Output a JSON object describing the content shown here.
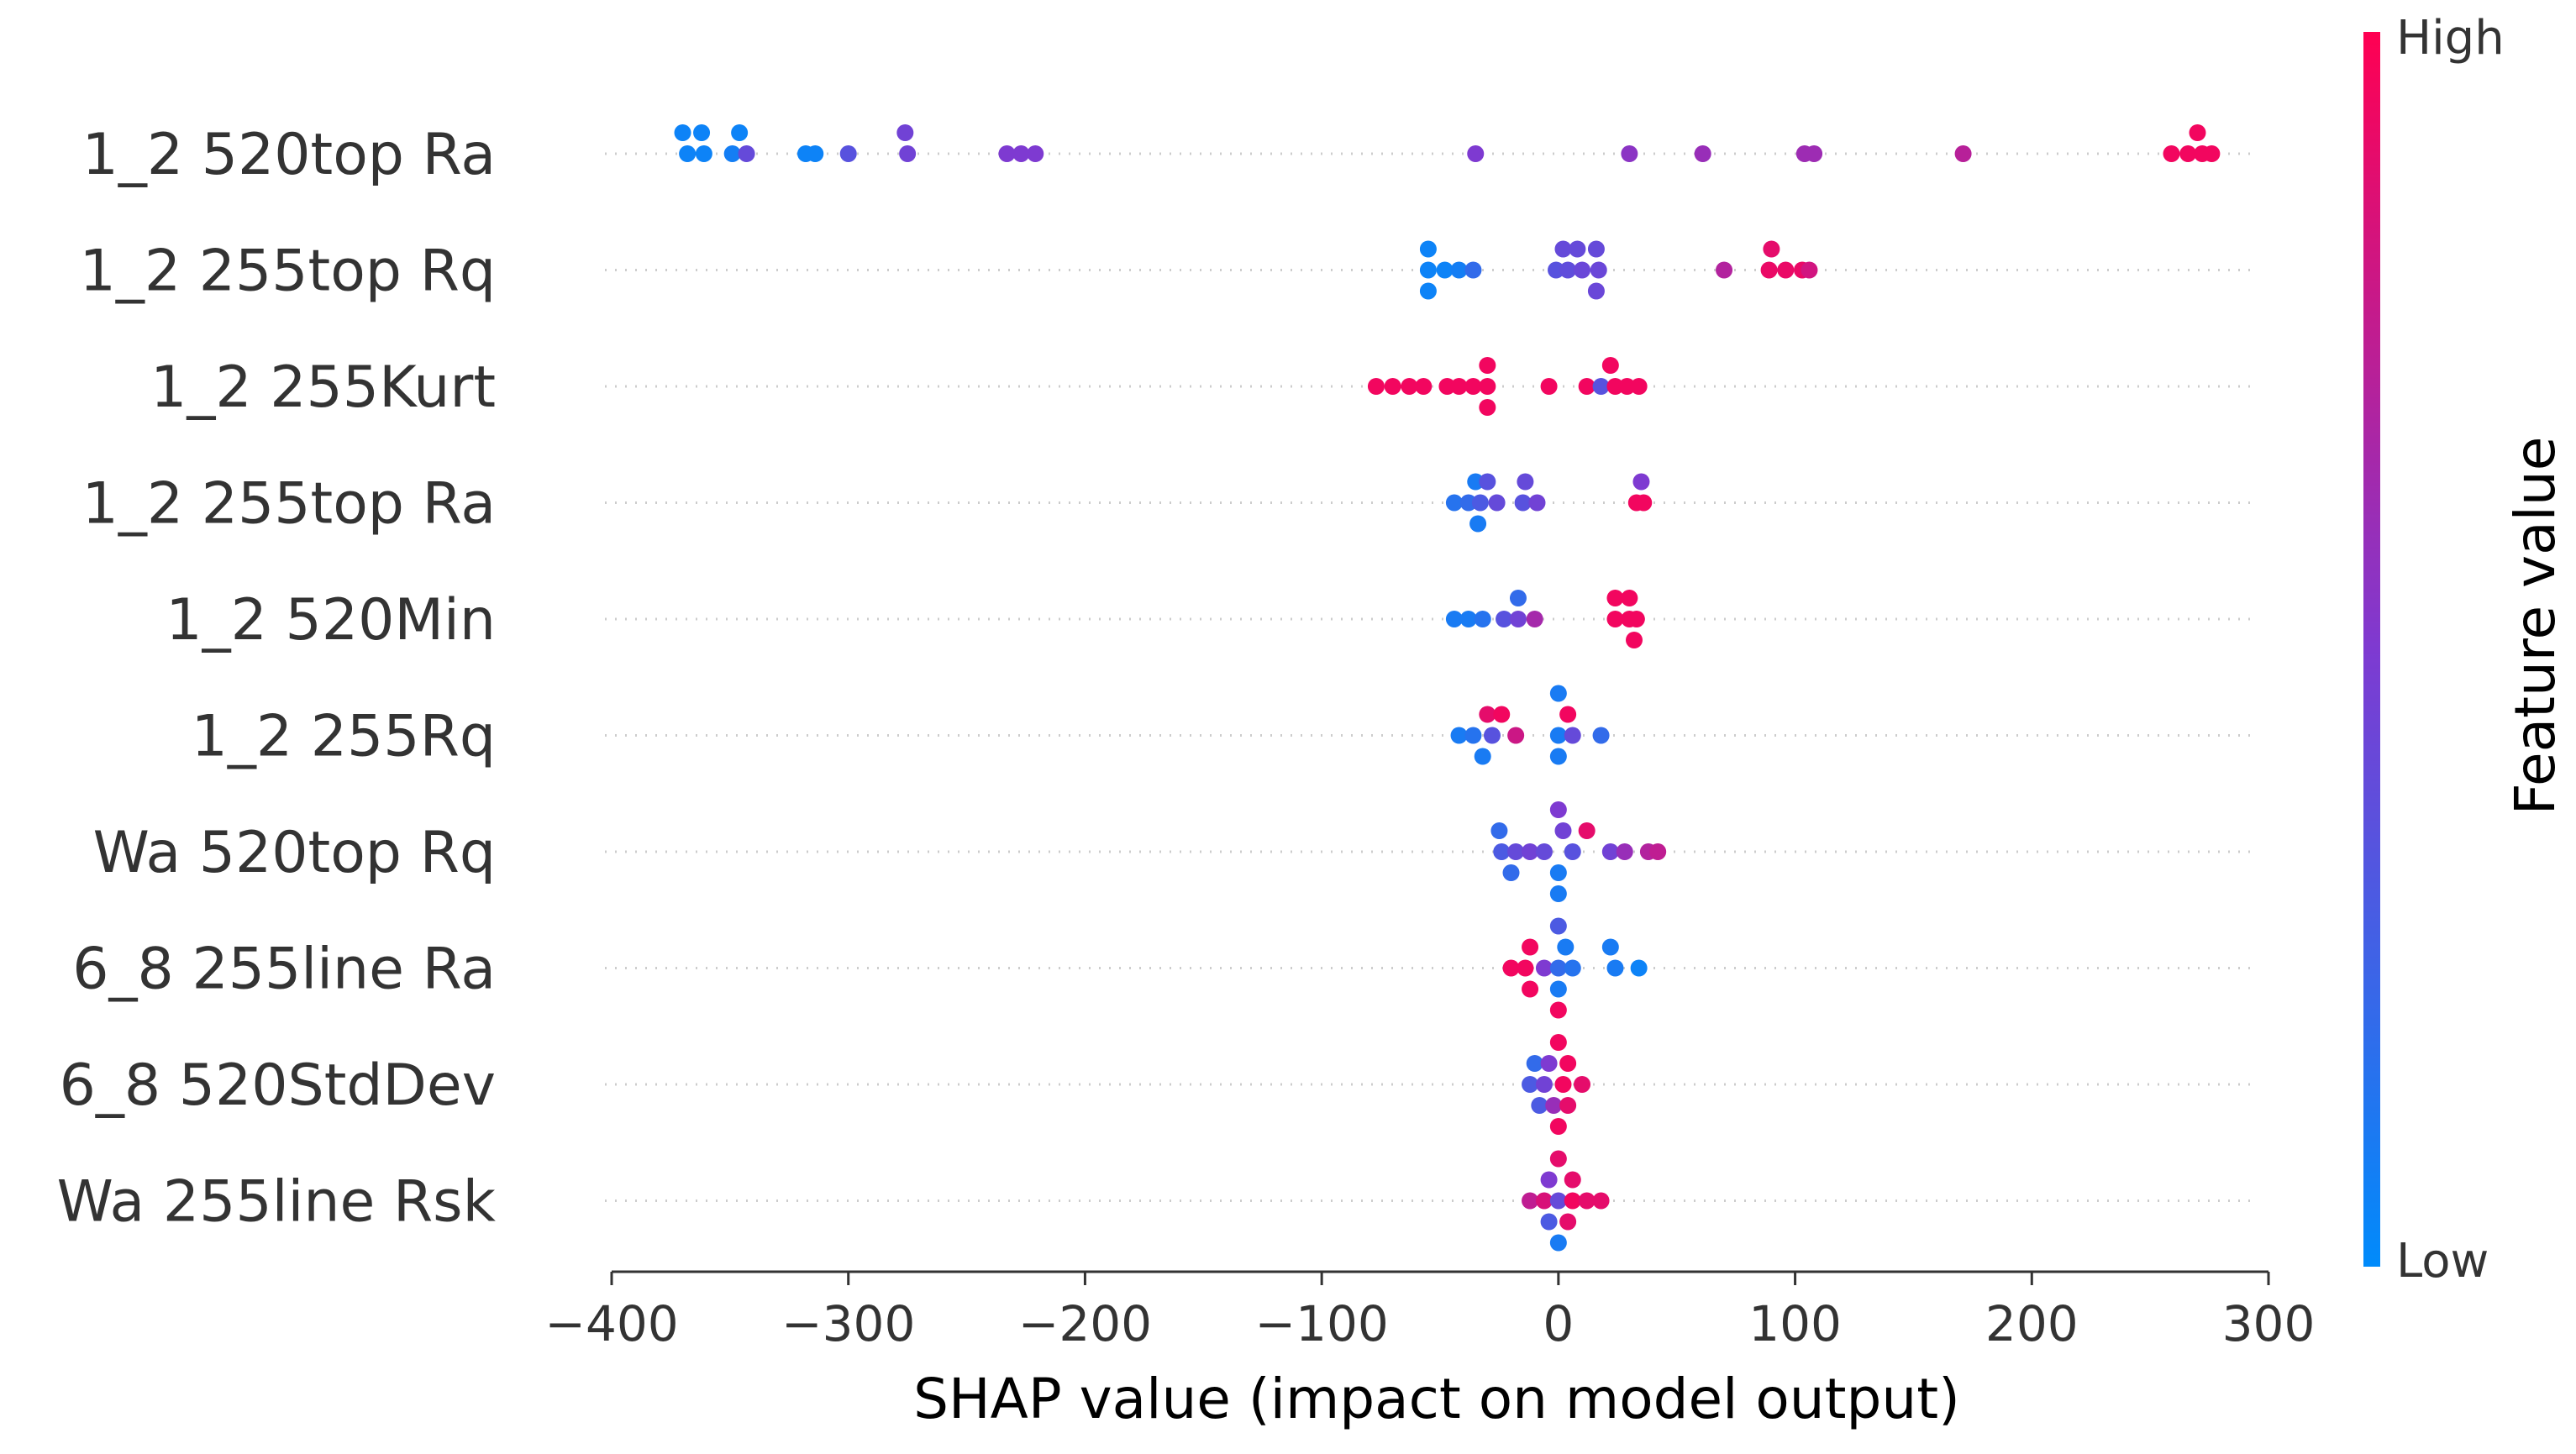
{
  "chart_data": {
    "type": "scatter",
    "subtype": "shap-beeswarm",
    "xlabel": "SHAP value (impact on model output)",
    "xlim": [
      -400,
      300
    ],
    "xticks": [
      -400,
      -300,
      -200,
      -100,
      0,
      100,
      200,
      300
    ],
    "xtick_labels": [
      "−400",
      "−300",
      "−200",
      "−100",
      "0",
      "100",
      "200",
      "300"
    ],
    "colorbar": {
      "title": "Feature value",
      "high_label": "High",
      "low_label": "Low",
      "low_color": "#008bfb",
      "mid_color": "#7e3ad1",
      "high_color": "#ff0052"
    },
    "features": [
      {
        "name": "1_2 520top Ra",
        "points": [
          {
            "x": -370,
            "off": 1,
            "v": 0.05
          },
          {
            "x": -362,
            "off": 1,
            "v": 0.05
          },
          {
            "x": -346,
            "off": 1,
            "v": 0.05
          },
          {
            "x": -368,
            "off": 0,
            "v": 0.05
          },
          {
            "x": -361,
            "off": 0,
            "v": 0.05
          },
          {
            "x": -349,
            "off": 0,
            "v": 0.08
          },
          {
            "x": -343,
            "off": 0,
            "v": 0.4
          },
          {
            "x": -318,
            "off": 0,
            "v": 0.05
          },
          {
            "x": -314,
            "off": 0,
            "v": 0.05
          },
          {
            "x": -300,
            "off": 0,
            "v": 0.35
          },
          {
            "x": -276,
            "off": 1,
            "v": 0.45
          },
          {
            "x": -275,
            "off": 0,
            "v": 0.45
          },
          {
            "x": -233,
            "off": 0,
            "v": 0.5
          },
          {
            "x": -227,
            "off": 0,
            "v": 0.5
          },
          {
            "x": -221,
            "off": 0,
            "v": 0.5
          },
          {
            "x": -35,
            "off": 0,
            "v": 0.5
          },
          {
            "x": 30,
            "off": 0,
            "v": 0.55
          },
          {
            "x": 61,
            "off": 0,
            "v": 0.6
          },
          {
            "x": 104,
            "off": 0,
            "v": 0.62
          },
          {
            "x": 108,
            "off": 0,
            "v": 0.62
          },
          {
            "x": 171,
            "off": 0,
            "v": 0.72
          },
          {
            "x": 259,
            "off": 0,
            "v": 0.95
          },
          {
            "x": 266,
            "off": 0,
            "v": 0.95
          },
          {
            "x": 272,
            "off": 0,
            "v": 0.95
          },
          {
            "x": 276,
            "off": 0,
            "v": 0.95
          },
          {
            "x": 270,
            "off": 1,
            "v": 0.95
          }
        ]
      },
      {
        "name": "1_2 255top Rq",
        "points": [
          {
            "x": -55,
            "off": 1,
            "v": 0.05
          },
          {
            "x": -55,
            "off": 0,
            "v": 0.05
          },
          {
            "x": -55,
            "off": -1,
            "v": 0.05
          },
          {
            "x": -48,
            "off": 0,
            "v": 0.05
          },
          {
            "x": -42,
            "off": 0,
            "v": 0.08
          },
          {
            "x": -36,
            "off": 0,
            "v": 0.2
          },
          {
            "x": -1,
            "off": 0,
            "v": 0.35
          },
          {
            "x": 4,
            "off": 0,
            "v": 0.38
          },
          {
            "x": 2,
            "off": 1,
            "v": 0.4
          },
          {
            "x": 8,
            "off": 1,
            "v": 0.4
          },
          {
            "x": 10,
            "off": 0,
            "v": 0.42
          },
          {
            "x": 16,
            "off": 1,
            "v": 0.4
          },
          {
            "x": 17,
            "off": 0,
            "v": 0.42
          },
          {
            "x": 16,
            "off": -1,
            "v": 0.42
          },
          {
            "x": 70,
            "off": 0,
            "v": 0.7
          },
          {
            "x": 90,
            "off": 1,
            "v": 0.9
          },
          {
            "x": 89,
            "off": 0,
            "v": 0.92
          },
          {
            "x": 96,
            "off": 0,
            "v": 0.92
          },
          {
            "x": 103,
            "off": 0,
            "v": 0.92
          },
          {
            "x": 106,
            "off": 0,
            "v": 0.82
          }
        ]
      },
      {
        "name": "1_2 255Kurt",
        "points": [
          {
            "x": -77,
            "off": 0,
            "v": 0.95
          },
          {
            "x": -70,
            "off": 0,
            "v": 0.95
          },
          {
            "x": -63,
            "off": 0,
            "v": 0.95
          },
          {
            "x": -57,
            "off": 0,
            "v": 0.95
          },
          {
            "x": -47,
            "off": 0,
            "v": 0.95
          },
          {
            "x": -42,
            "off": 0,
            "v": 0.95
          },
          {
            "x": -36,
            "off": 0,
            "v": 0.95
          },
          {
            "x": -30,
            "off": 1,
            "v": 0.95
          },
          {
            "x": -30,
            "off": 0,
            "v": 0.95
          },
          {
            "x": -30,
            "off": -1,
            "v": 0.95
          },
          {
            "x": -4,
            "off": 0,
            "v": 0.95
          },
          {
            "x": 12,
            "off": 0,
            "v": 0.95
          },
          {
            "x": 18,
            "off": 0,
            "v": 0.35
          },
          {
            "x": 22,
            "off": 1,
            "v": 0.95
          },
          {
            "x": 24,
            "off": 0,
            "v": 0.95
          },
          {
            "x": 29,
            "off": 0,
            "v": 0.95
          },
          {
            "x": 34,
            "off": 0,
            "v": 0.95
          }
        ]
      },
      {
        "name": "1_2 255top Ra",
        "points": [
          {
            "x": -35,
            "off": 1,
            "v": 0.1
          },
          {
            "x": -30,
            "off": 1,
            "v": 0.35
          },
          {
            "x": -14,
            "off": 1,
            "v": 0.4
          },
          {
            "x": -44,
            "off": 0,
            "v": 0.15
          },
          {
            "x": -38,
            "off": 0,
            "v": 0.2
          },
          {
            "x": -33,
            "off": 0,
            "v": 0.3
          },
          {
            "x": -26,
            "off": 0,
            "v": 0.4
          },
          {
            "x": -15,
            "off": 0,
            "v": 0.35
          },
          {
            "x": -9,
            "off": 0,
            "v": 0.45
          },
          {
            "x": -34,
            "off": -1,
            "v": 0.1
          },
          {
            "x": 35,
            "off": 1,
            "v": 0.5
          },
          {
            "x": 33,
            "off": 0,
            "v": 0.95
          },
          {
            "x": 36,
            "off": 0,
            "v": 0.95
          }
        ]
      },
      {
        "name": "1_2 520Min",
        "points": [
          {
            "x": -17,
            "off": 1,
            "v": 0.2
          },
          {
            "x": -44,
            "off": 0,
            "v": 0.1
          },
          {
            "x": -38,
            "off": 0,
            "v": 0.1
          },
          {
            "x": -32,
            "off": 0,
            "v": 0.15
          },
          {
            "x": -23,
            "off": 0,
            "v": 0.35
          },
          {
            "x": -17,
            "off": 0,
            "v": 0.45
          },
          {
            "x": -10,
            "off": 0,
            "v": 0.65
          },
          {
            "x": 24,
            "off": 1,
            "v": 0.95
          },
          {
            "x": 30,
            "off": 1,
            "v": 0.95
          },
          {
            "x": 24,
            "off": 0,
            "v": 0.95
          },
          {
            "x": 30,
            "off": 0,
            "v": 0.95
          },
          {
            "x": 33,
            "off": 0,
            "v": 0.95
          },
          {
            "x": 32,
            "off": -1,
            "v": 0.95
          }
        ]
      },
      {
        "name": "1_2 255Rq",
        "points": [
          {
            "x": -30,
            "off": 1,
            "v": 0.9
          },
          {
            "x": -24,
            "off": 1,
            "v": 0.95
          },
          {
            "x": 0,
            "off": 2,
            "v": 0.1
          },
          {
            "x": 4,
            "off": 1,
            "v": 0.95
          },
          {
            "x": -42,
            "off": 0,
            "v": 0.1
          },
          {
            "x": -36,
            "off": 0,
            "v": 0.15
          },
          {
            "x": -28,
            "off": 0,
            "v": 0.35
          },
          {
            "x": -18,
            "off": 0,
            "v": 0.8
          },
          {
            "x": 0,
            "off": 0,
            "v": 0.1
          },
          {
            "x": 6,
            "off": 0,
            "v": 0.4
          },
          {
            "x": 18,
            "off": 0,
            "v": 0.2
          },
          {
            "x": -32,
            "off": -1,
            "v": 0.1
          },
          {
            "x": 0,
            "off": -1,
            "v": 0.1
          }
        ]
      },
      {
        "name": "Wa 520top Rq",
        "points": [
          {
            "x": -25,
            "off": 1,
            "v": 0.2
          },
          {
            "x": 0,
            "off": 2,
            "v": 0.5
          },
          {
            "x": 2,
            "off": 1,
            "v": 0.45
          },
          {
            "x": 12,
            "off": 1,
            "v": 0.9
          },
          {
            "x": -24,
            "off": 0,
            "v": 0.3
          },
          {
            "x": -18,
            "off": 0,
            "v": 0.4
          },
          {
            "x": -12,
            "off": 0,
            "v": 0.45
          },
          {
            "x": -6,
            "off": 0,
            "v": 0.4
          },
          {
            "x": 6,
            "off": 0,
            "v": 0.35
          },
          {
            "x": 22,
            "off": 0,
            "v": 0.45
          },
          {
            "x": 28,
            "off": 0,
            "v": 0.6
          },
          {
            "x": 38,
            "off": 0,
            "v": 0.7
          },
          {
            "x": 42,
            "off": 0,
            "v": 0.75
          },
          {
            "x": -20,
            "off": -1,
            "v": 0.2
          },
          {
            "x": 0,
            "off": -1,
            "v": 0.1
          },
          {
            "x": 0,
            "off": -2,
            "v": 0.1
          }
        ]
      },
      {
        "name": "6_8 255line Ra",
        "points": [
          {
            "x": -12,
            "off": 1,
            "v": 0.95
          },
          {
            "x": 0,
            "off": 2,
            "v": 0.3
          },
          {
            "x": 3,
            "off": 1,
            "v": 0.1
          },
          {
            "x": 22,
            "off": 1,
            "v": 0.1
          },
          {
            "x": -20,
            "off": 0,
            "v": 0.95
          },
          {
            "x": -14,
            "off": 0,
            "v": 0.95
          },
          {
            "x": -6,
            "off": 0,
            "v": 0.5
          },
          {
            "x": 0,
            "off": 0,
            "v": 0.2
          },
          {
            "x": 6,
            "off": 0,
            "v": 0.15
          },
          {
            "x": 24,
            "off": 0,
            "v": 0.1
          },
          {
            "x": 34,
            "off": 0,
            "v": 0.05
          },
          {
            "x": -12,
            "off": -1,
            "v": 0.95
          },
          {
            "x": 0,
            "off": -1,
            "v": 0.1
          },
          {
            "x": 0,
            "off": -2,
            "v": 0.95
          }
        ]
      },
      {
        "name": "6_8 520StdDev",
        "points": [
          {
            "x": 0,
            "off": 2,
            "v": 0.95
          },
          {
            "x": -10,
            "off": 1,
            "v": 0.2
          },
          {
            "x": -4,
            "off": 1,
            "v": 0.5
          },
          {
            "x": 4,
            "off": 1,
            "v": 0.95
          },
          {
            "x": -12,
            "off": 0,
            "v": 0.3
          },
          {
            "x": -6,
            "off": 0,
            "v": 0.45
          },
          {
            "x": 2,
            "off": 0,
            "v": 0.95
          },
          {
            "x": 10,
            "off": 0,
            "v": 0.9
          },
          {
            "x": -8,
            "off": -1,
            "v": 0.3
          },
          {
            "x": -2,
            "off": -1,
            "v": 0.6
          },
          {
            "x": 4,
            "off": -1,
            "v": 0.9
          },
          {
            "x": 0,
            "off": -2,
            "v": 0.95
          }
        ]
      },
      {
        "name": "Wa 255line Rsk",
        "points": [
          {
            "x": 0,
            "off": 2,
            "v": 0.9
          },
          {
            "x": -4,
            "off": 1,
            "v": 0.5
          },
          {
            "x": 6,
            "off": 1,
            "v": 0.9
          },
          {
            "x": -12,
            "off": 0,
            "v": 0.75
          },
          {
            "x": -6,
            "off": 0,
            "v": 0.85
          },
          {
            "x": 0,
            "off": 0,
            "v": 0.4
          },
          {
            "x": 6,
            "off": 0,
            "v": 0.95
          },
          {
            "x": 12,
            "off": 0,
            "v": 0.9
          },
          {
            "x": 18,
            "off": 0,
            "v": 0.9
          },
          {
            "x": -4,
            "off": -1,
            "v": 0.3
          },
          {
            "x": 4,
            "off": -1,
            "v": 0.9
          },
          {
            "x": 0,
            "off": -2,
            "v": 0.1
          }
        ]
      }
    ]
  }
}
